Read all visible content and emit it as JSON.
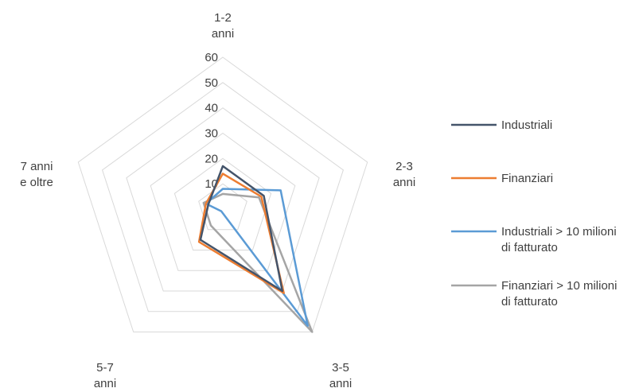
{
  "chart_data": {
    "type": "radar",
    "title": "",
    "categories": [
      [
        "1-2",
        "anni"
      ],
      [
        "2-3",
        "anni"
      ],
      [
        "3-5",
        "anni"
      ],
      [
        "5-7",
        "anni"
      ],
      [
        "7 anni",
        "e oltre"
      ]
    ],
    "rlim": [
      0,
      60
    ],
    "ticks": [
      "10",
      "20",
      "30",
      "40",
      "50",
      "60"
    ],
    "tick_values": [
      10,
      20,
      30,
      40,
      50,
      60
    ],
    "grid": true,
    "legend_position": "right",
    "series": [
      {
        "name": [
          "Industriali"
        ],
        "color": "#44546a",
        "values": [
          17,
          17,
          40,
          15,
          6
        ]
      },
      {
        "name": [
          "Finanziari"
        ],
        "color": "#ed7d31",
        "values": [
          14,
          16,
          41,
          16,
          7
        ]
      },
      {
        "name": [
          "Industriali > 10 milioni",
          "di fatturato"
        ],
        "color": "#5b9bd5",
        "values": [
          8,
          24,
          57,
          1,
          7
        ]
      },
      {
        "name": [
          "Finanziari > 10 milioni",
          "di fatturato"
        ],
        "color": "#a5a5a5",
        "values": [
          6,
          15,
          60,
          8,
          8
        ]
      }
    ]
  }
}
